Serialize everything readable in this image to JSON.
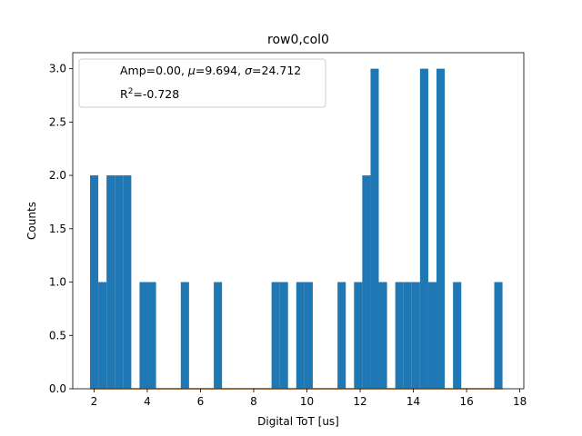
{
  "chart_data": {
    "type": "bar",
    "title": "row0,col0",
    "xlabel": "Digital ToT [us]",
    "ylabel": "Counts",
    "xlim": [
      1.2,
      18.15
    ],
    "ylim": [
      0,
      3.15
    ],
    "xticks": [
      2,
      4,
      6,
      8,
      10,
      12,
      14,
      16,
      18
    ],
    "yticks": [
      0.0,
      0.5,
      1.0,
      1.5,
      2.0,
      2.5,
      3.0
    ],
    "xtick_labels": [
      "2",
      "4",
      "6",
      "8",
      "10",
      "12",
      "14",
      "16",
      "18"
    ],
    "ytick_labels": [
      "0.0",
      "0.5",
      "1.0",
      "1.5",
      "2.0",
      "2.5",
      "3.0"
    ],
    "bin_width": 0.31,
    "bins": [
      {
        "x": 1.85,
        "count": 2
      },
      {
        "x": 2.16,
        "count": 1
      },
      {
        "x": 2.47,
        "count": 2
      },
      {
        "x": 2.78,
        "count": 2
      },
      {
        "x": 3.09,
        "count": 2
      },
      {
        "x": 3.71,
        "count": 1
      },
      {
        "x": 4.02,
        "count": 1
      },
      {
        "x": 5.26,
        "count": 1
      },
      {
        "x": 6.5,
        "count": 1
      },
      {
        "x": 8.67,
        "count": 1
      },
      {
        "x": 8.98,
        "count": 1
      },
      {
        "x": 9.6,
        "count": 1
      },
      {
        "x": 9.91,
        "count": 1
      },
      {
        "x": 11.15,
        "count": 1
      },
      {
        "x": 11.77,
        "count": 1
      },
      {
        "x": 12.08,
        "count": 2
      },
      {
        "x": 12.39,
        "count": 3
      },
      {
        "x": 12.7,
        "count": 1
      },
      {
        "x": 13.32,
        "count": 1
      },
      {
        "x": 13.63,
        "count": 1
      },
      {
        "x": 13.94,
        "count": 1
      },
      {
        "x": 14.25,
        "count": 3
      },
      {
        "x": 14.56,
        "count": 1
      },
      {
        "x": 14.87,
        "count": 3
      },
      {
        "x": 15.49,
        "count": 1
      },
      {
        "x": 17.04,
        "count": 1
      }
    ],
    "bar_color": "#1f77b4",
    "fit_line": {
      "color": "#ff7f0e",
      "x_range": [
        1.85,
        17.35
      ],
      "value": 0.0
    },
    "legend": {
      "placement": "upper-left",
      "line1_prefix": "Amp=0.00, ",
      "mu_symbol": "μ",
      "mu_text": "=9.694, ",
      "sigma_symbol": "σ",
      "sigma_text": "=24.712",
      "r_prefix": "R",
      "r_superscript": "2",
      "r_text": "=-0.728"
    },
    "grid": false
  }
}
